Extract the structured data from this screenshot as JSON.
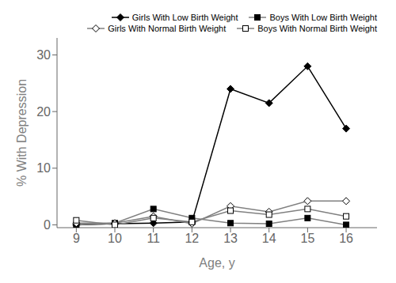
{
  "chart_data": {
    "type": "line",
    "xlabel": "Age, y",
    "ylabel": "% With Depression",
    "x": [
      9,
      10,
      11,
      12,
      13,
      14,
      15,
      16
    ],
    "series": [
      {
        "name": "Girls With Low Birth Weight",
        "color": "#000000",
        "marker": "diamond",
        "values": [
          0.0,
          0.2,
          0.3,
          0.5,
          24.0,
          21.5,
          28.0,
          17.0
        ]
      },
      {
        "name": "Boys With Low Birth Weight",
        "color": "#808080",
        "marker": "square",
        "values": [
          0.0,
          0.3,
          2.8,
          1.2,
          0.3,
          0.2,
          1.2,
          0.0
        ]
      },
      {
        "name": "Girls With Normal Birth Weight",
        "color": "#808080",
        "marker": "open-diamond",
        "values": [
          0.3,
          0.3,
          1.5,
          0.2,
          3.3,
          2.3,
          4.2,
          4.2
        ]
      },
      {
        "name": "Boys With Normal Birth Weight",
        "color": "#808080",
        "marker": "open-square",
        "values": [
          0.8,
          0.0,
          1.2,
          0.5,
          2.5,
          1.8,
          2.8,
          1.5
        ]
      }
    ],
    "xlim": [
      8.5,
      16.8
    ],
    "xticks": [
      9,
      10,
      11,
      12,
      13,
      14,
      15,
      16
    ],
    "ylim": [
      -0.5,
      33
    ],
    "yticks": [
      0,
      10,
      20,
      30
    ],
    "grid": false,
    "legend": "upper right"
  }
}
